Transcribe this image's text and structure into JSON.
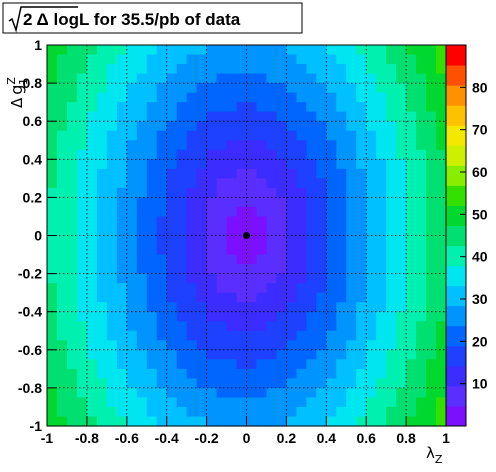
{
  "chart_data": {
    "type": "heatmap",
    "title": {
      "sqrt_part": "2 Δ logL",
      "rest": " for 35.5/pb of data"
    },
    "xlabel": {
      "symbol": "λ",
      "subscript": "Z"
    },
    "ylabel": {
      "prefix": "Δ",
      "symbol": "g",
      "superscript": "Z",
      "subscript": "1"
    },
    "xlim": [
      -1,
      1
    ],
    "ylim": [
      -1,
      1
    ],
    "xticks": [
      "-1",
      "-0.8",
      "-0.6",
      "-0.4",
      "-0.2",
      "0",
      "0.2",
      "0.4",
      "0.6",
      "0.8",
      "1"
    ],
    "yticks": [
      "-1",
      "-0.8",
      "-0.6",
      "-0.4",
      "-0.2",
      "0",
      "0.2",
      "0.4",
      "0.6",
      "0.8",
      "1"
    ],
    "grid": true,
    "grid_style": "dotted",
    "colorbar": {
      "min": 0,
      "max": 90,
      "ticks": [
        "10",
        "20",
        "30",
        "40",
        "50",
        "60",
        "70",
        "80"
      ],
      "colors": [
        "#7a10ff",
        "#5a2eff",
        "#3c2cff",
        "#1e40ff",
        "#0066ff",
        "#0094ff",
        "#00c0ff",
        "#00e6f0",
        "#00f0b0",
        "#00e070",
        "#00d830",
        "#33e000",
        "#88ee00",
        "#ccf000",
        "#f4e800",
        "#ffc000",
        "#ff9000",
        "#ff5000",
        "#ff0000"
      ]
    },
    "model": {
      "description_values": "sqrt(2ΔlogL) ≈ sqrt((λZ/0.40)^2 + (Δg1Z/0.58)^2)*10 approx",
      "best_fit": {
        "x": 0.0,
        "y": 0.0
      }
    },
    "cells": {
      "nx": 40,
      "ny": 40
    }
  }
}
